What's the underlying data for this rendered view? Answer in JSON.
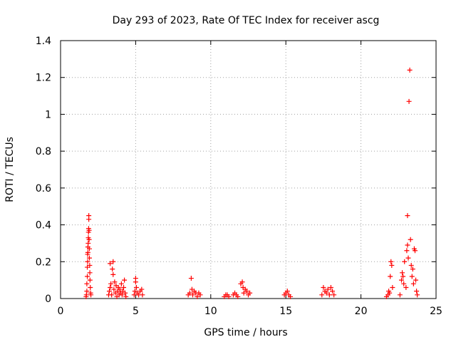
{
  "chart_data": {
    "type": "scatter",
    "title": "Day 293 of 2023, Rate Of TEC Index for receiver ascg",
    "xlabel": "GPS time / hours",
    "ylabel": "ROTI / TECUs",
    "xlim": [
      0,
      25
    ],
    "ylim": [
      0,
      1.4
    ],
    "xticks": [
      0,
      5,
      10,
      15,
      20,
      25
    ],
    "yticks": [
      0,
      0.2,
      0.4,
      0.6,
      0.8,
      1,
      1.2,
      1.4
    ],
    "xtick_labels": [
      "0",
      "5",
      "10",
      "15",
      "20",
      "25"
    ],
    "ytick_labels": [
      "0",
      "0.2",
      "0.4",
      "0.6",
      "0.8",
      "1",
      "1.2",
      "1.4"
    ],
    "grid": true,
    "marker": "+",
    "marker_color": "#ff0000",
    "series": [
      {
        "points": [
          [
            1.7,
            0.01
          ],
          [
            1.72,
            0.02
          ],
          [
            1.75,
            0.04
          ],
          [
            1.75,
            0.08
          ],
          [
            1.78,
            0.12
          ],
          [
            1.78,
            0.17
          ],
          [
            1.8,
            0.2
          ],
          [
            1.8,
            0.24
          ],
          [
            1.82,
            0.25
          ],
          [
            1.82,
            0.28
          ],
          [
            1.84,
            0.3
          ],
          [
            1.85,
            0.33
          ],
          [
            1.86,
            0.36
          ],
          [
            1.87,
            0.38
          ],
          [
            1.88,
            0.43
          ],
          [
            1.88,
            0.45
          ],
          [
            1.9,
            0.37
          ],
          [
            1.9,
            0.32
          ],
          [
            1.92,
            0.27
          ],
          [
            1.92,
            0.22
          ],
          [
            1.94,
            0.18
          ],
          [
            1.95,
            0.14
          ],
          [
            1.96,
            0.1
          ],
          [
            1.98,
            0.06
          ],
          [
            2.0,
            0.03
          ],
          [
            2.02,
            0.02
          ],
          [
            3.2,
            0.02
          ],
          [
            3.25,
            0.04
          ],
          [
            3.3,
            0.06
          ],
          [
            3.3,
            0.19
          ],
          [
            3.35,
            0.08
          ],
          [
            3.4,
            0.02
          ],
          [
            3.45,
            0.16
          ],
          [
            3.5,
            0.2
          ],
          [
            3.5,
            0.13
          ],
          [
            3.55,
            0.05
          ],
          [
            3.6,
            0.09
          ],
          [
            3.65,
            0.03
          ],
          [
            3.7,
            0.07
          ],
          [
            3.75,
            0.01
          ],
          [
            3.8,
            0.04
          ],
          [
            3.85,
            0.06
          ],
          [
            3.9,
            0.02
          ],
          [
            3.95,
            0.05
          ],
          [
            4.0,
            0.03
          ],
          [
            4.05,
            0.08
          ],
          [
            4.1,
            0.02
          ],
          [
            4.15,
            0.04
          ],
          [
            4.2,
            0.06
          ],
          [
            4.25,
            0.1
          ],
          [
            4.3,
            0.03
          ],
          [
            4.35,
            0.01
          ],
          [
            4.9,
            0.02
          ],
          [
            4.95,
            0.04
          ],
          [
            5.0,
            0.09
          ],
          [
            5.0,
            0.11
          ],
          [
            5.05,
            0.06
          ],
          [
            5.1,
            0.03
          ],
          [
            5.2,
            0.02
          ],
          [
            5.3,
            0.04
          ],
          [
            5.4,
            0.05
          ],
          [
            5.45,
            0.02
          ],
          [
            8.5,
            0.02
          ],
          [
            8.6,
            0.03
          ],
          [
            8.7,
            0.11
          ],
          [
            8.75,
            0.05
          ],
          [
            8.8,
            0.02
          ],
          [
            8.9,
            0.04
          ],
          [
            9.0,
            0.03
          ],
          [
            9.1,
            0.01
          ],
          [
            9.2,
            0.03
          ],
          [
            9.3,
            0.02
          ],
          [
            10.9,
            0.01
          ],
          [
            11.0,
            0.02
          ],
          [
            11.1,
            0.02
          ],
          [
            11.2,
            0.01
          ],
          [
            11.5,
            0.02
          ],
          [
            11.6,
            0.03
          ],
          [
            11.7,
            0.02
          ],
          [
            11.8,
            0.01
          ],
          [
            12.0,
            0.08
          ],
          [
            12.1,
            0.09
          ],
          [
            12.15,
            0.06
          ],
          [
            12.2,
            0.03
          ],
          [
            12.3,
            0.05
          ],
          [
            12.4,
            0.04
          ],
          [
            12.5,
            0.02
          ],
          [
            12.6,
            0.03
          ],
          [
            14.9,
            0.02
          ],
          [
            15.0,
            0.03
          ],
          [
            15.1,
            0.04
          ],
          [
            15.2,
            0.02
          ],
          [
            15.3,
            0.01
          ],
          [
            17.4,
            0.02
          ],
          [
            17.5,
            0.06
          ],
          [
            17.6,
            0.04
          ],
          [
            17.7,
            0.03
          ],
          [
            17.8,
            0.05
          ],
          [
            17.9,
            0.02
          ],
          [
            18.0,
            0.06
          ],
          [
            18.1,
            0.04
          ],
          [
            18.2,
            0.02
          ],
          [
            21.7,
            0.01
          ],
          [
            21.8,
            0.02
          ],
          [
            21.85,
            0.04
          ],
          [
            21.9,
            0.03
          ],
          [
            21.95,
            0.12
          ],
          [
            22.0,
            0.2
          ],
          [
            22.05,
            0.18
          ],
          [
            22.1,
            0.06
          ],
          [
            22.6,
            0.02
          ],
          [
            22.7,
            0.1
          ],
          [
            22.75,
            0.14
          ],
          [
            22.8,
            0.12
          ],
          [
            22.85,
            0.08
          ],
          [
            22.9,
            0.2
          ],
          [
            23.0,
            0.06
          ],
          [
            23.05,
            0.26
          ],
          [
            23.1,
            0.29
          ],
          [
            23.1,
            0.45
          ],
          [
            23.15,
            0.22
          ],
          [
            23.2,
            1.07
          ],
          [
            23.25,
            1.24
          ],
          [
            23.3,
            0.32
          ],
          [
            23.35,
            0.18
          ],
          [
            23.4,
            0.12
          ],
          [
            23.45,
            0.16
          ],
          [
            23.5,
            0.08
          ],
          [
            23.55,
            0.27
          ],
          [
            23.6,
            0.26
          ],
          [
            23.65,
            0.1
          ],
          [
            23.7,
            0.04
          ],
          [
            23.75,
            0.02
          ]
        ]
      }
    ]
  }
}
